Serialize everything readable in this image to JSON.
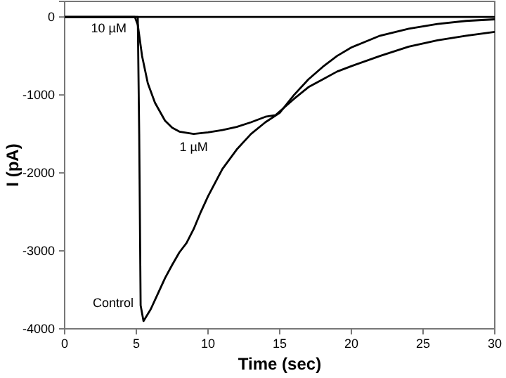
{
  "chart_data": {
    "type": "line",
    "xlabel": "Time (sec)",
    "ylabel": "I (pA)",
    "xlim": [
      0,
      30
    ],
    "ylim": [
      -4000,
      200
    ],
    "xticks": [
      0,
      5,
      10,
      15,
      20,
      25,
      30
    ],
    "yticks": [
      0,
      -1000,
      -2000,
      -3000,
      -4000
    ],
    "grid": false,
    "marker": "none",
    "line_style": "solid",
    "series": [
      {
        "name": "Control",
        "color": "#000000",
        "x": [
          0,
          5.1,
          5.2,
          5.3,
          5.5,
          6,
          6.5,
          7,
          7.5,
          8,
          8.5,
          9,
          9.5,
          10,
          11,
          12,
          13,
          14,
          15,
          16,
          17,
          18,
          19,
          20,
          22,
          24,
          26,
          28,
          30
        ],
        "values": [
          0,
          0,
          -1500,
          -3700,
          -3900,
          -3750,
          -3550,
          -3350,
          -3180,
          -3020,
          -2900,
          -2720,
          -2500,
          -2300,
          -1950,
          -1700,
          -1500,
          -1350,
          -1230,
          -1000,
          -800,
          -640,
          -500,
          -390,
          -240,
          -150,
          -90,
          -50,
          -30
        ]
      },
      {
        "name": "1 µM",
        "color": "#000000",
        "x": [
          0,
          4.9,
          5.1,
          5.4,
          5.8,
          6.3,
          7,
          7.5,
          8,
          9,
          10,
          11,
          12,
          13,
          14,
          14.7,
          16,
          17,
          18,
          19,
          20,
          22,
          24,
          26,
          28,
          30
        ],
        "values": [
          0,
          0,
          -100,
          -500,
          -850,
          -1100,
          -1330,
          -1420,
          -1470,
          -1500,
          -1480,
          -1450,
          -1410,
          -1350,
          -1280,
          -1260,
          -1050,
          -900,
          -800,
          -700,
          -630,
          -500,
          -380,
          -300,
          -240,
          -190
        ]
      },
      {
        "name": "10 µM",
        "color": "#000000",
        "x": [
          0,
          30
        ],
        "values": [
          0,
          0
        ]
      }
    ]
  }
}
